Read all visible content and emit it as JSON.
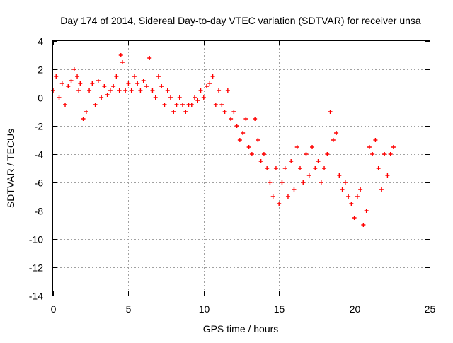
{
  "chart_data": {
    "type": "scatter",
    "title": "Day 174 of 2014, Sidereal Day-to-day VTEC variation (SDTVAR) for receiver unsa",
    "xlabel": "GPS time / hours",
    "ylabel": "SDTVAR / TECUs",
    "xlim": [
      0,
      25
    ],
    "ylim": [
      -14,
      4
    ],
    "xticks": [
      0,
      5,
      10,
      15,
      20,
      25
    ],
    "yticks": [
      -14,
      -12,
      -10,
      -8,
      -6,
      -4,
      -2,
      0,
      2,
      4
    ],
    "grid": true,
    "marker": "+",
    "series": [
      {
        "name": "SDTVAR",
        "color": "#ff0000",
        "x": [
          0.0,
          0.2,
          0.4,
          0.6,
          0.8,
          1.0,
          1.2,
          1.4,
          1.6,
          1.7,
          1.8,
          2.0,
          2.2,
          2.4,
          2.6,
          2.8,
          3.0,
          3.2,
          3.4,
          3.6,
          3.8,
          4.0,
          4.2,
          4.4,
          4.5,
          4.6,
          4.8,
          5.0,
          5.2,
          5.4,
          5.6,
          5.8,
          6.0,
          6.2,
          6.4,
          6.6,
          6.8,
          7.0,
          7.2,
          7.4,
          7.6,
          7.8,
          8.0,
          8.2,
          8.4,
          8.6,
          8.8,
          9.0,
          9.2,
          9.4,
          9.6,
          9.8,
          10.0,
          10.2,
          10.4,
          10.6,
          10.8,
          11.0,
          11.2,
          11.4,
          11.6,
          11.8,
          12.0,
          12.2,
          12.4,
          12.6,
          12.8,
          13.0,
          13.2,
          13.4,
          13.6,
          13.8,
          14.0,
          14.2,
          14.4,
          14.6,
          14.8,
          15.0,
          15.2,
          15.4,
          15.6,
          15.8,
          16.0,
          16.2,
          16.4,
          16.6,
          16.8,
          17.0,
          17.2,
          17.4,
          17.6,
          17.8,
          18.0,
          18.2,
          18.4,
          18.6,
          18.8,
          19.0,
          19.2,
          19.4,
          19.6,
          19.8,
          20.0,
          20.2,
          20.4,
          20.6,
          20.8,
          21.0,
          21.2,
          21.4,
          21.6,
          21.8,
          22.0,
          22.2,
          22.4,
          22.6
        ],
        "y": [
          0.5,
          1.5,
          0.0,
          1.0,
          -0.5,
          0.8,
          1.2,
          2.0,
          1.5,
          0.5,
          1.0,
          -1.5,
          -1.0,
          0.5,
          1.0,
          -0.5,
          1.2,
          0.0,
          0.8,
          0.2,
          0.5,
          0.8,
          1.5,
          0.5,
          3.0,
          2.5,
          0.5,
          1.0,
          0.5,
          1.5,
          1.0,
          0.5,
          1.2,
          0.8,
          2.8,
          0.5,
          0.0,
          1.5,
          0.8,
          -0.5,
          0.5,
          0.0,
          -1.0,
          -0.5,
          0.0,
          -0.5,
          -1.0,
          -0.5,
          -0.5,
          0.0,
          -0.2,
          0.5,
          0.0,
          0.8,
          1.0,
          1.5,
          -0.5,
          0.5,
          -0.5,
          -1.0,
          0.5,
          -1.5,
          -1.0,
          -2.0,
          -3.0,
          -2.5,
          -1.5,
          -3.5,
          -4.0,
          -1.5,
          -3.0,
          -4.5,
          -4.0,
          -5.0,
          -6.0,
          -7.0,
          -5.0,
          -7.5,
          -6.0,
          -5.0,
          -7.0,
          -4.5,
          -6.5,
          -3.5,
          -5.0,
          -6.0,
          -4.0,
          -5.5,
          -3.5,
          -5.0,
          -4.5,
          -6.0,
          -5.0,
          -4.0,
          -1.0,
          -3.0,
          -2.5,
          -5.5,
          -6.5,
          -6.0,
          -7.0,
          -7.5,
          -8.5,
          -7.0,
          -6.5,
          -9.0,
          -8.0,
          -3.5,
          -4.0,
          -3.0,
          -5.0,
          -6.5,
          -4.0,
          -5.5,
          -4.0,
          -3.5
        ]
      }
    ]
  }
}
